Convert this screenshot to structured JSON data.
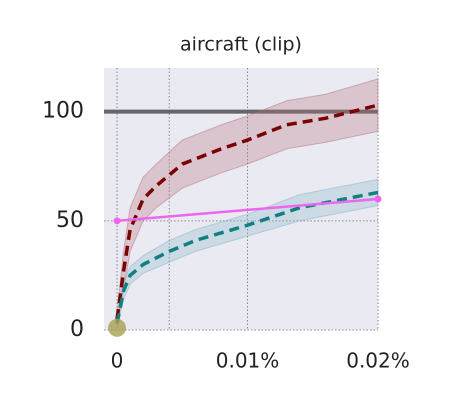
{
  "chart_data": {
    "type": "line",
    "title": "aircraft (clip)",
    "xlim": [
      -0.001,
      0.02
    ],
    "ylim": [
      0,
      120
    ],
    "xticks": [
      0,
      {
        "value": 0.01,
        "label": "0.01%"
      },
      {
        "value": 0.02,
        "label": "0.02%"
      }
    ],
    "xminorticks": [
      0.004
    ],
    "yticks": [
      0,
      50,
      100
    ],
    "reference_line": {
      "value": 100,
      "color": "#666666"
    },
    "grid": true,
    "series": [
      {
        "color": "#7b0000",
        "band_color": "#b5707f",
        "dashed": true,
        "x": [
          0,
          0.0005,
          0.001,
          0.002,
          0.003,
          0.005,
          0.008,
          0.01,
          0.013,
          0.016,
          0.02
        ],
        "values": [
          5,
          27,
          46,
          60,
          66,
          76,
          83,
          87,
          94,
          97,
          103
        ],
        "lower": [
          2,
          18,
          36,
          50,
          56,
          65,
          72,
          76,
          83,
          86,
          91
        ],
        "upper": [
          8,
          36,
          56,
          70,
          76,
          87,
          94,
          98,
          105,
          108,
          115
        ]
      },
      {
        "color": "#108080",
        "band_color": "#86b6c8",
        "dashed": true,
        "x": [
          0,
          0.0005,
          0.001,
          0.002,
          0.004,
          0.006,
          0.01,
          0.014,
          0.02
        ],
        "values": [
          3,
          18,
          25,
          30,
          36,
          41,
          48,
          56,
          63
        ],
        "lower": [
          1,
          14,
          21,
          26,
          31,
          36,
          43,
          50,
          57
        ],
        "upper": [
          5,
          22,
          29,
          34,
          41,
          46,
          53,
          62,
          69
        ]
      },
      {
        "color": "#ee66ee",
        "dashed": false,
        "markers": true,
        "x": [
          0,
          0.02
        ],
        "values": [
          50,
          60
        ]
      }
    ],
    "points": [
      {
        "color": "#a8a050",
        "x": 0,
        "value": 1
      }
    ]
  }
}
